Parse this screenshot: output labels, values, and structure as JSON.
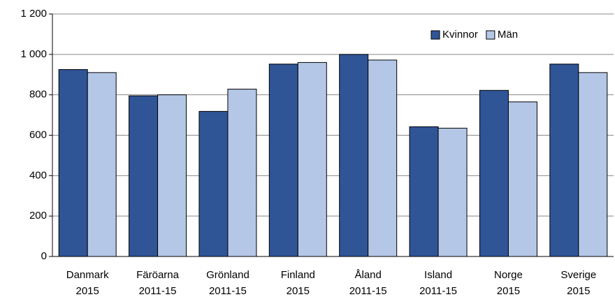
{
  "chart_data": {
    "type": "bar",
    "categories": [
      [
        "Danmark",
        "2015"
      ],
      [
        "Färöarna",
        "2011-15"
      ],
      [
        "Grönland",
        "2011-15"
      ],
      [
        "Finland",
        "2015"
      ],
      [
        "Åland",
        "2011-15"
      ],
      [
        "Island",
        "2011-15"
      ],
      [
        "Norge",
        "2015"
      ],
      [
        "Sverige",
        "2015"
      ]
    ],
    "series": [
      {
        "name": "Kvinnor",
        "color": "#2f5597",
        "values": [
          925,
          795,
          718,
          952,
          1000,
          642,
          822,
          952
        ]
      },
      {
        "name": "Män",
        "color": "#b4c7e7",
        "values": [
          910,
          800,
          828,
          960,
          972,
          635,
          765,
          910
        ]
      }
    ],
    "ylim": [
      0,
      1200
    ],
    "yticks": [
      0,
      200,
      400,
      600,
      800,
      {
        "value": 1000,
        "label": "1 000"
      },
      {
        "value": 1200,
        "label": "1 200"
      }
    ],
    "grid": true,
    "legend": "upper-right"
  }
}
